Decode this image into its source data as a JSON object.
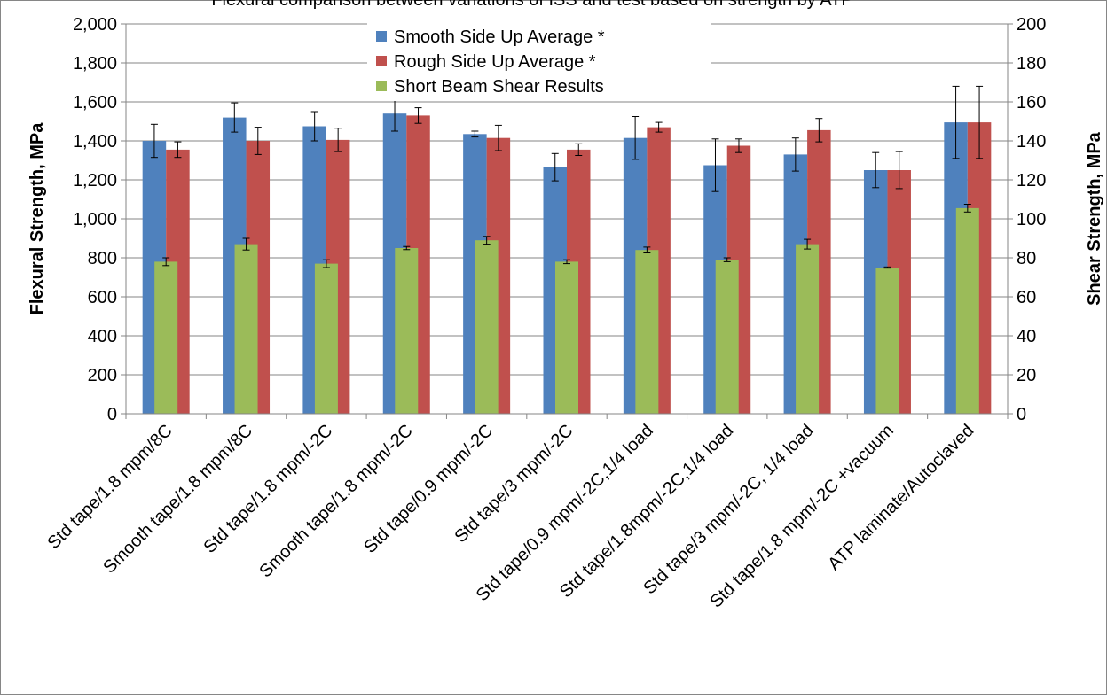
{
  "page_title": "Flexural comparison between variations of ISS and test based on strength by ATP",
  "chart_data": {
    "type": "bar",
    "categories": [
      "Std tape/1.8 mpm/8C",
      "Smooth tape/1.8 mpm/8C",
      "Std tape/1.8 mpm/-2C",
      "Smooth tape/1.8 mpm/-2C",
      "Std tape/0.9 mpm/-2C",
      "Std tape/3 mpm/-2C",
      "Std tape/0.9 mpm/-2C,1/4 load",
      "Std tape/1.8mpm/-2C,1/4 load",
      "Std tape/3 mpm/-2C,  1/4 load",
      "Std tape/1.8 mpm/-2C +vacuum",
      "ATP laminate/Autoclaved"
    ],
    "series": [
      {
        "name": "Smooth Side Up Average *",
        "color": "#4f81bd",
        "axis": "left",
        "values": [
          1400,
          1520,
          1475,
          1540,
          1435,
          1265,
          1415,
          1275,
          1330,
          1250,
          1495
        ],
        "errors": [
          85,
          75,
          75,
          90,
          15,
          70,
          110,
          135,
          85,
          90,
          185
        ]
      },
      {
        "name": "Rough Side Up Average *",
        "color": "#c0504d",
        "axis": "left",
        "values": [
          1355,
          1400,
          1405,
          1530,
          1415,
          1355,
          1470,
          1375,
          1455,
          1250,
          1495
        ],
        "errors": [
          40,
          70,
          60,
          40,
          65,
          30,
          25,
          35,
          60,
          95,
          185
        ]
      },
      {
        "name": "Short Beam Shear Results",
        "color": "#9bbb59",
        "axis": "right",
        "values": [
          78,
          87,
          77,
          85,
          89,
          78,
          84,
          79,
          87,
          75,
          105.5
        ],
        "errors": [
          2,
          3,
          2,
          0.8,
          2,
          1,
          1.5,
          1,
          2.5,
          0.3,
          2
        ]
      }
    ],
    "ylabel": "Flexural Strength, MPa",
    "y2label": "Shear Strength, MPa",
    "ylim": [
      0,
      2000
    ],
    "y2lim": [
      0,
      200
    ],
    "yticks": [
      "0",
      "200",
      "400",
      "600",
      "800",
      "1,000",
      "1,200",
      "1,400",
      "1,600",
      "1,800",
      "2,000"
    ],
    "y2ticks": [
      "0",
      "20",
      "40",
      "60",
      "80",
      "100",
      "120",
      "140",
      "160",
      "180",
      "200"
    ],
    "grid": true,
    "legend_position": "top-center"
  }
}
